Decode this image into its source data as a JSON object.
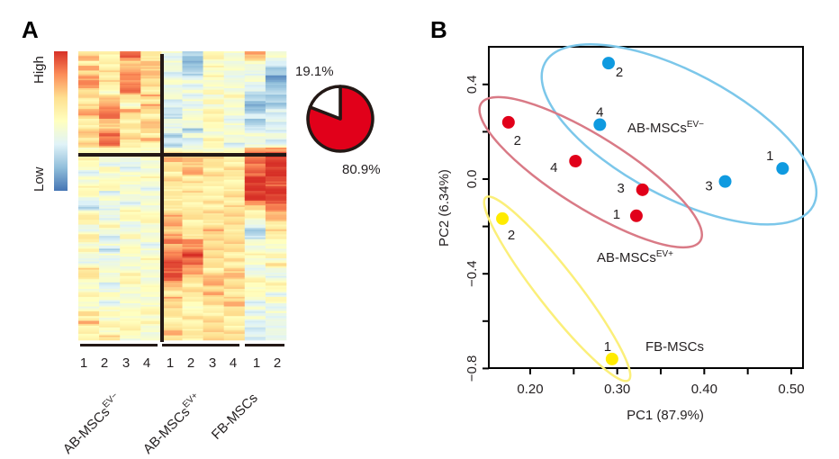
{
  "figure": {
    "panel_a_letter": "A",
    "panel_b_letter": "B"
  },
  "chart_data": [
    {
      "type": "heatmap",
      "title": "",
      "colorbar": {
        "high_label": "High",
        "low_label": "Low",
        "colors": [
          "#4575b4",
          "#91bfdb",
          "#e0f3f8",
          "#ffffbf",
          "#fee090",
          "#fc8d59",
          "#d73027"
        ]
      },
      "value_scale": "0 (low, blue) to 9 (high, red)",
      "columns": [
        {
          "group": "AB-MSCs EV-",
          "sample": "1"
        },
        {
          "group": "AB-MSCs EV-",
          "sample": "2"
        },
        {
          "group": "AB-MSCs EV-",
          "sample": "3"
        },
        {
          "group": "AB-MSCs EV-",
          "sample": "4"
        },
        {
          "group": "AB-MSCs EV+",
          "sample": "1"
        },
        {
          "group": "AB-MSCs EV+",
          "sample": "2"
        },
        {
          "group": "AB-MSCs EV+",
          "sample": "3"
        },
        {
          "group": "AB-MSCs EV+",
          "sample": "4"
        },
        {
          "group": "FB-MSCs",
          "sample": "1"
        },
        {
          "group": "FB-MSCs",
          "sample": "2"
        }
      ],
      "groups": [
        {
          "label": "AB-MSCs",
          "superscript": "EV−",
          "samples": [
            "1",
            "2",
            "3",
            "4"
          ]
        },
        {
          "label": "AB-MSCs",
          "superscript": "EV+",
          "samples": [
            "1",
            "2",
            "3",
            "4"
          ]
        },
        {
          "label": "FB-MSCs",
          "superscript": "",
          "samples": [
            "1",
            "2"
          ]
        }
      ],
      "cluster_split_fraction_top": 0.36,
      "rows_per_column": 60,
      "matrix_columns": [
        "675767876656775567574555434455432465436545434665445544657555",
        "555565654677887678885443544553443434543342434444335434545546",
        "886778788654765656655443345444434554345445444455544444545554",
        "657676665757656765754544445434444455444434454444454445545444",
        "434433534433324342324676656656565677767877889898765766655676",
        "221223434343444424334676775656555665565878988776566554565565",
        "554545445454555544554666566555565665676666666567767665566666",
        "444443444544443444434555665556656666656666565676665676655566",
        "774434433221232234437888889999986554322444544345545434343333",
        "443221122222333334337999999899988776565544546434553543434343"
      ]
    },
    {
      "type": "pie",
      "slices": [
        {
          "label": "80.9%",
          "value": 80.9,
          "color": "#e1001a"
        },
        {
          "label": "19.1%",
          "value": 19.1,
          "color": "#ffffff"
        }
      ]
    },
    {
      "type": "scatter",
      "title": "",
      "xlabel": "PC1 (87.9%)",
      "ylabel": "PC2 (6.34%)",
      "xlim": [
        0.165,
        0.505
      ],
      "ylim": [
        -0.8,
        0.55
      ],
      "xticks": [
        0.2,
        0.25,
        0.3,
        0.35,
        0.4,
        0.45,
        0.5
      ],
      "xtick_labels": [
        "0.20",
        "",
        "0.30",
        "",
        "0.40",
        "",
        "0.50"
      ],
      "yticks": [
        0.4,
        0.2,
        0.0,
        -0.2,
        -0.4,
        -0.6,
        -0.8
      ],
      "ytick_labels": [
        "0.4",
        "",
        "0.0",
        "",
        "−0.4",
        "",
        "−0.8"
      ],
      "grid": false,
      "series": [
        {
          "name": "AB-MSCs EV-",
          "label": "AB-MSCs",
          "superscript": "EV−",
          "color": "#0f9ae0",
          "ellipse_color": "#7cc7ea",
          "points": [
            {
              "id": "1",
              "x": 0.49,
              "y": 0.045
            },
            {
              "id": "2",
              "x": 0.29,
              "y": 0.49
            },
            {
              "id": "3",
              "x": 0.424,
              "y": -0.01
            },
            {
              "id": "4",
              "x": 0.28,
              "y": 0.23
            }
          ]
        },
        {
          "name": "AB-MSCs EV+",
          "label": "AB-MSCs",
          "superscript": "EV+",
          "color": "#e1001a",
          "ellipse_color": "#d97a86",
          "points": [
            {
              "id": "1",
              "x": 0.322,
              "y": -0.155
            },
            {
              "id": "2",
              "x": 0.175,
              "y": 0.24
            },
            {
              "id": "3",
              "x": 0.329,
              "y": -0.045
            },
            {
              "id": "4",
              "x": 0.252,
              "y": 0.076
            }
          ]
        },
        {
          "name": "FB-MSCs",
          "label": "FB-MSCs",
          "superscript": "",
          "color": "#ffeb00",
          "ellipse_color": "#fbef7a",
          "points": [
            {
              "id": "1",
              "x": 0.294,
              "y": -0.76
            },
            {
              "id": "2",
              "x": 0.168,
              "y": -0.167
            }
          ]
        }
      ]
    }
  ]
}
